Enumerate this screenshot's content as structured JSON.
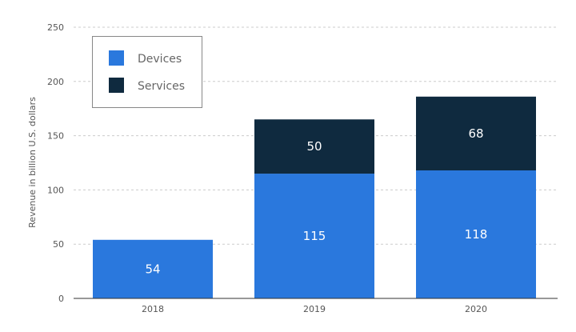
{
  "chart_data": {
    "type": "bar",
    "stacked": true,
    "categories": [
      "2018",
      "2019",
      "2020"
    ],
    "series": [
      {
        "name": "Devices",
        "values": [
          54,
          115,
          118
        ],
        "color": "#2a78dd"
      },
      {
        "name": "Services",
        "values": [
          null,
          50,
          68
        ],
        "color": "#0f2a3f"
      }
    ],
    "ylabel": "Revenue in billion U.S. dollars",
    "xlabel": "",
    "ylim": [
      0,
      250
    ],
    "yticks": [
      0,
      50,
      100,
      150,
      200,
      250
    ],
    "grid": true,
    "legend_position": "top-left"
  }
}
